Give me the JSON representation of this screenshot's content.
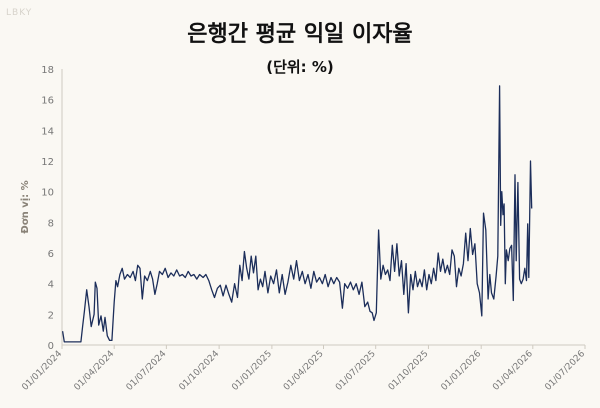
{
  "watermark": "LBKY",
  "chart_data": {
    "type": "line",
    "title": "은행간 평균 익일 이자율",
    "subtitle": "(단위: %)",
    "ylabel": "Đơn vị: %",
    "xlabel": "",
    "ylim": [
      0,
      18
    ],
    "yticks": [
      0,
      2,
      4,
      6,
      8,
      10,
      12,
      14,
      16,
      18
    ],
    "xlim": [
      "2024-01-01",
      "2026-07-01"
    ],
    "xticks": [
      "2024-01-01",
      "2024-04-01",
      "2024-07-01",
      "2024-10-01",
      "2025-01-01",
      "2025-04-01",
      "2025-07-01",
      "2025-10-01",
      "2026-01-01",
      "2026-04-01",
      "2026-07-01"
    ],
    "xtick_labels": [
      "01/01/2024",
      "01/04/2024",
      "01/07/2024",
      "01/10/2024",
      "01/01/2025",
      "01/04/2025",
      "01/07/2025",
      "01/10/2025",
      "01/01/2026",
      "01/04/2026",
      "01/07/2026"
    ],
    "grid": false,
    "color": "#1c2e5a",
    "series": [
      {
        "values": [
          [
            "2024-01-02",
            0.9
          ],
          [
            "2024-01-05",
            0.2
          ],
          [
            "2024-01-15",
            0.2
          ],
          [
            "2024-01-28",
            0.2
          ],
          [
            "2024-02-03",
            0.2
          ],
          [
            "2024-02-06",
            1.2
          ],
          [
            "2024-02-09",
            2.2
          ],
          [
            "2024-02-13",
            3.6
          ],
          [
            "2024-02-17",
            2.5
          ],
          [
            "2024-02-21",
            1.2
          ],
          [
            "2024-02-26",
            2.0
          ],
          [
            "2024-02-28",
            4.1
          ],
          [
            "2024-03-02",
            3.7
          ],
          [
            "2024-03-05",
            1.3
          ],
          [
            "2024-03-09",
            1.9
          ],
          [
            "2024-03-13",
            0.9
          ],
          [
            "2024-03-16",
            1.8
          ],
          [
            "2024-03-20",
            0.6
          ],
          [
            "2024-03-24",
            0.3
          ],
          [
            "2024-03-28",
            0.3
          ],
          [
            "2024-04-01",
            2.8
          ],
          [
            "2024-04-04",
            4.2
          ],
          [
            "2024-04-07",
            3.8
          ],
          [
            "2024-04-11",
            4.6
          ],
          [
            "2024-04-15",
            5.0
          ],
          [
            "2024-04-19",
            4.3
          ],
          [
            "2024-04-24",
            4.6
          ],
          [
            "2024-04-29",
            4.4
          ],
          [
            "2024-05-04",
            4.8
          ],
          [
            "2024-05-08",
            4.2
          ],
          [
            "2024-05-12",
            5.2
          ],
          [
            "2024-05-16",
            5.0
          ],
          [
            "2024-05-20",
            3.0
          ],
          [
            "2024-05-24",
            4.5
          ],
          [
            "2024-05-29",
            4.2
          ],
          [
            "2024-06-03",
            4.8
          ],
          [
            "2024-06-07",
            4.3
          ],
          [
            "2024-06-11",
            3.3
          ],
          [
            "2024-06-15",
            4.0
          ],
          [
            "2024-06-19",
            4.8
          ],
          [
            "2024-06-24",
            4.6
          ],
          [
            "2024-06-29",
            5.0
          ],
          [
            "2024-07-04",
            4.4
          ],
          [
            "2024-07-09",
            4.7
          ],
          [
            "2024-07-14",
            4.5
          ],
          [
            "2024-07-19",
            4.9
          ],
          [
            "2024-07-24",
            4.5
          ],
          [
            "2024-07-29",
            4.6
          ],
          [
            "2024-08-03",
            4.4
          ],
          [
            "2024-08-08",
            4.8
          ],
          [
            "2024-08-13",
            4.5
          ],
          [
            "2024-08-18",
            4.6
          ],
          [
            "2024-08-23",
            4.3
          ],
          [
            "2024-08-28",
            4.6
          ],
          [
            "2024-09-03",
            4.4
          ],
          [
            "2024-09-08",
            4.6
          ],
          [
            "2024-09-13",
            4.2
          ],
          [
            "2024-09-18",
            3.6
          ],
          [
            "2024-09-23",
            3.1
          ],
          [
            "2024-09-28",
            3.7
          ],
          [
            "2024-10-03",
            3.9
          ],
          [
            "2024-10-08",
            3.2
          ],
          [
            "2024-10-13",
            3.9
          ],
          [
            "2024-10-18",
            3.3
          ],
          [
            "2024-10-23",
            2.8
          ],
          [
            "2024-10-28",
            4.0
          ],
          [
            "2024-11-02",
            3.1
          ],
          [
            "2024-11-06",
            5.2
          ],
          [
            "2024-11-10",
            4.2
          ],
          [
            "2024-11-14",
            6.1
          ],
          [
            "2024-11-18",
            5.0
          ],
          [
            "2024-11-22",
            4.3
          ],
          [
            "2024-11-26",
            5.8
          ],
          [
            "2024-11-30",
            4.7
          ],
          [
            "2024-12-04",
            5.8
          ],
          [
            "2024-12-08",
            3.6
          ],
          [
            "2024-12-12",
            4.3
          ],
          [
            "2024-12-16",
            3.8
          ],
          [
            "2024-12-20",
            4.8
          ],
          [
            "2024-12-25",
            3.4
          ],
          [
            "2024-12-30",
            4.5
          ],
          [
            "2025-01-04",
            4.0
          ],
          [
            "2025-01-09",
            4.9
          ],
          [
            "2025-01-14",
            3.4
          ],
          [
            "2025-01-19",
            4.6
          ],
          [
            "2025-01-24",
            3.3
          ],
          [
            "2025-01-29",
            4.1
          ],
          [
            "2025-02-03",
            5.2
          ],
          [
            "2025-02-08",
            4.3
          ],
          [
            "2025-02-13",
            5.5
          ],
          [
            "2025-02-18",
            4.2
          ],
          [
            "2025-02-23",
            4.8
          ],
          [
            "2025-02-28",
            4.0
          ],
          [
            "2025-03-05",
            4.6
          ],
          [
            "2025-03-10",
            3.7
          ],
          [
            "2025-03-15",
            4.8
          ],
          [
            "2025-03-20",
            4.1
          ],
          [
            "2025-03-25",
            4.4
          ],
          [
            "2025-03-30",
            4.0
          ],
          [
            "2025-04-04",
            4.6
          ],
          [
            "2025-04-09",
            3.8
          ],
          [
            "2025-04-14",
            4.4
          ],
          [
            "2025-04-19",
            4.0
          ],
          [
            "2025-04-24",
            4.4
          ],
          [
            "2025-04-29",
            4.1
          ],
          [
            "2025-05-04",
            2.4
          ],
          [
            "2025-05-08",
            4.0
          ],
          [
            "2025-05-13",
            3.7
          ],
          [
            "2025-05-18",
            4.1
          ],
          [
            "2025-05-23",
            3.6
          ],
          [
            "2025-05-28",
            4.0
          ],
          [
            "2025-06-02",
            3.3
          ],
          [
            "2025-06-07",
            4.1
          ],
          [
            "2025-06-12",
            2.5
          ],
          [
            "2025-06-17",
            2.8
          ],
          [
            "2025-06-21",
            2.2
          ],
          [
            "2025-06-25",
            2.1
          ],
          [
            "2025-06-28",
            1.6
          ],
          [
            "2025-07-02",
            2.1
          ],
          [
            "2025-07-06",
            7.5
          ],
          [
            "2025-07-10",
            4.3
          ],
          [
            "2025-07-14",
            5.2
          ],
          [
            "2025-07-18",
            4.6
          ],
          [
            "2025-07-22",
            4.9
          ],
          [
            "2025-07-26",
            4.2
          ],
          [
            "2025-07-30",
            6.5
          ],
          [
            "2025-08-03",
            4.8
          ],
          [
            "2025-08-07",
            6.6
          ],
          [
            "2025-08-11",
            4.5
          ],
          [
            "2025-08-15",
            5.5
          ],
          [
            "2025-08-19",
            3.3
          ],
          [
            "2025-08-23",
            5.3
          ],
          [
            "2025-08-27",
            2.1
          ],
          [
            "2025-08-31",
            4.6
          ],
          [
            "2025-09-04",
            3.6
          ],
          [
            "2025-09-08",
            4.8
          ],
          [
            "2025-09-12",
            3.8
          ],
          [
            "2025-09-16",
            4.3
          ],
          [
            "2025-09-20",
            3.8
          ],
          [
            "2025-09-24",
            4.9
          ],
          [
            "2025-09-28",
            3.6
          ],
          [
            "2025-10-02",
            4.6
          ],
          [
            "2025-10-06",
            4.0
          ],
          [
            "2025-10-10",
            5.0
          ],
          [
            "2025-10-14",
            4.2
          ],
          [
            "2025-10-18",
            6.0
          ],
          [
            "2025-10-22",
            4.8
          ],
          [
            "2025-10-26",
            5.6
          ],
          [
            "2025-10-30",
            4.7
          ],
          [
            "2025-11-03",
            5.2
          ],
          [
            "2025-11-07",
            4.6
          ],
          [
            "2025-11-11",
            6.2
          ],
          [
            "2025-11-15",
            5.8
          ],
          [
            "2025-11-19",
            3.8
          ],
          [
            "2025-11-23",
            5.0
          ],
          [
            "2025-11-27",
            4.5
          ],
          [
            "2025-12-01",
            5.3
          ],
          [
            "2025-12-05",
            7.3
          ],
          [
            "2025-12-09",
            5.5
          ],
          [
            "2025-12-13",
            7.6
          ],
          [
            "2025-12-17",
            5.9
          ],
          [
            "2025-12-21",
            6.6
          ],
          [
            "2025-12-25",
            4.0
          ],
          [
            "2025-12-29",
            3.4
          ],
          [
            "2026-01-02",
            1.9
          ],
          [
            "2026-01-05",
            8.6
          ],
          [
            "2026-01-09",
            7.5
          ],
          [
            "2026-01-13",
            3.0
          ],
          [
            "2026-01-16",
            4.6
          ],
          [
            "2026-01-19",
            3.4
          ],
          [
            "2026-01-23",
            3.0
          ],
          [
            "2026-01-27",
            4.5
          ],
          [
            "2026-01-30",
            5.8
          ],
          [
            "2026-02-02",
            16.9
          ],
          [
            "2026-02-04",
            7.8
          ],
          [
            "2026-02-06",
            10.0
          ],
          [
            "2026-02-08",
            8.5
          ],
          [
            "2026-02-10",
            9.2
          ],
          [
            "2026-02-12",
            4.0
          ],
          [
            "2026-02-14",
            6.2
          ],
          [
            "2026-02-17",
            5.5
          ],
          [
            "2026-02-20",
            6.3
          ],
          [
            "2026-02-23",
            6.5
          ],
          [
            "2026-02-26",
            2.9
          ],
          [
            "2026-03-01",
            11.1
          ],
          [
            "2026-03-03",
            5.5
          ],
          [
            "2026-03-06",
            10.6
          ],
          [
            "2026-03-09",
            4.3
          ],
          [
            "2026-03-12",
            4.0
          ],
          [
            "2026-03-15",
            4.3
          ],
          [
            "2026-03-18",
            5.0
          ],
          [
            "2026-03-21",
            4.2
          ],
          [
            "2026-03-23",
            7.9
          ],
          [
            "2026-03-25",
            4.4
          ],
          [
            "2026-03-28",
            12.0
          ],
          [
            "2026-03-30",
            8.9
          ]
        ]
      }
    ]
  }
}
